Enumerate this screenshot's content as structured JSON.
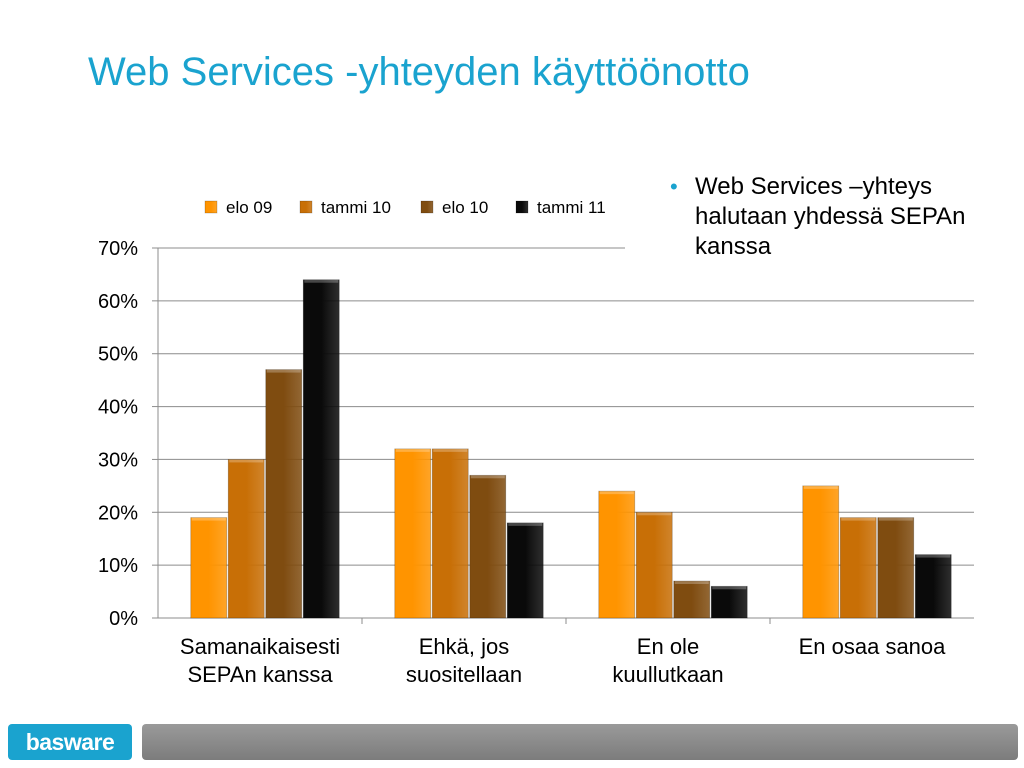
{
  "slide": {
    "title": "Web Services -yhteyden käyttöönotto",
    "bullets": [
      "Web Services –yhteys halutaan yhdessä SEPAn kanssa"
    ]
  },
  "footer": {
    "logo_text": "basware",
    "logo_icon": "basware-logo"
  },
  "colors": {
    "title": "#1aa3cf",
    "series": [
      "#ff9400",
      "#c86f06",
      "#7f4c10",
      "#0a0a0a"
    ]
  },
  "chart_data": {
    "type": "bar",
    "categories": [
      [
        "Samanaikaisesti",
        "SEPAn kanssa"
      ],
      [
        "Ehkä, jos",
        "suositellaan"
      ],
      [
        "En ole",
        "kuullutkaan"
      ],
      [
        "En osaa sanoa"
      ]
    ],
    "series": [
      {
        "name": "elo 09",
        "values": [
          19,
          32,
          24,
          25
        ]
      },
      {
        "name": "tammi 10",
        "values": [
          30,
          32,
          20,
          19
        ]
      },
      {
        "name": "elo 10",
        "values": [
          47,
          27,
          7,
          19
        ]
      },
      {
        "name": "tammi 11",
        "values": [
          64,
          18,
          6,
          12
        ]
      }
    ],
    "y_ticks": [
      "0%",
      "10%",
      "20%",
      "30%",
      "40%",
      "50%",
      "60%",
      "70%"
    ],
    "ylim": [
      0,
      70
    ],
    "unit": "%",
    "grid": true,
    "legend_position": "top"
  }
}
